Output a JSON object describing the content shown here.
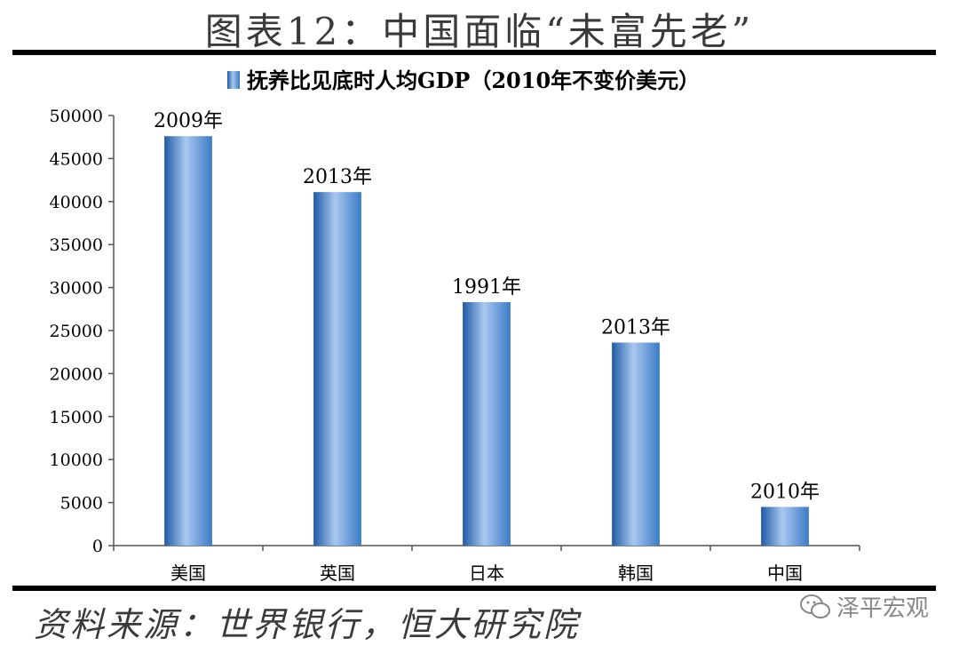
{
  "figure_title": "图表12：中国面临“未富先老”",
  "source": "资料来源：世界银行，恒大研究院",
  "watermark": "泽平宏观",
  "colors": {
    "bar": "#3a7ac8",
    "bar_dark": "#1f5aa6",
    "bar_light": "#a9c8ef"
  },
  "chart_data": {
    "type": "bar",
    "title": "",
    "xlabel": "",
    "ylabel": "",
    "ylim": [
      0,
      50000
    ],
    "yticks": [
      0,
      5000,
      10000,
      15000,
      20000,
      25000,
      30000,
      35000,
      40000,
      45000,
      50000
    ],
    "legend_position": "top-center",
    "grid": false,
    "categories": [
      "美国",
      "英国",
      "日本",
      "韩国",
      "中国"
    ],
    "series": [
      {
        "name": "抚养比见底时人均GDP（2010年不变价美元）",
        "values": [
          47600,
          41100,
          28300,
          23600,
          4500
        ]
      }
    ],
    "data_labels": [
      "2009年",
      "2013年",
      "1991年",
      "2013年",
      "2010年"
    ]
  }
}
